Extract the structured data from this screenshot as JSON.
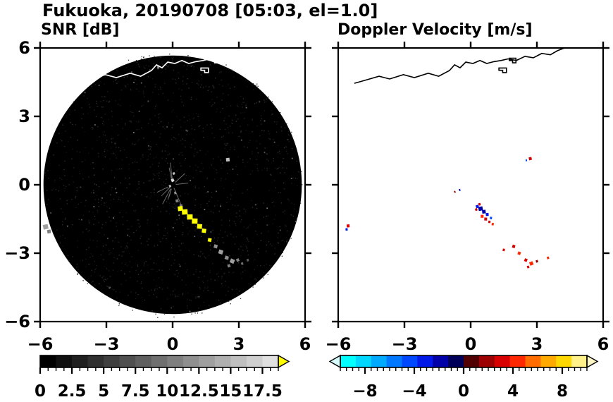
{
  "header": {
    "title": "Fukuoka, 20190708 [05:03, el=1.0]"
  },
  "panels": {
    "snr": {
      "title": "SNR [dB]"
    },
    "doppler": {
      "title": "Doppler Velocity [m/s]"
    }
  },
  "chart_data": [
    {
      "type": "heatmap",
      "variant": "radar-ppi-scan",
      "title": "SNR [dB]",
      "xlabel": "",
      "ylabel": "",
      "xlim": [
        -6,
        6
      ],
      "ylim": [
        -6,
        6
      ],
      "xtick_values": [
        -6,
        -3,
        0,
        3,
        6
      ],
      "xtick_labels": [
        "−6",
        "−3",
        "0",
        "3",
        "6"
      ],
      "ytick_values": [
        -6,
        -3,
        0,
        3,
        6
      ],
      "ytick_labels": [
        "−6",
        "−3",
        "0",
        "3",
        "6"
      ],
      "grid": false,
      "scan_disk": true,
      "scan_radius": 5.85,
      "background_color": "#000000",
      "coast_color": "#ffffff",
      "colorbar": {
        "vmin": 0,
        "vmax": 18.75,
        "minor_tick_step": 0.625,
        "tick_values": [
          0,
          2.5,
          5,
          7.5,
          10,
          12.5,
          15,
          17.5
        ],
        "tick_labels": [
          "0",
          "2.5",
          "5",
          "7.5",
          "10",
          "12.5",
          "15",
          "17.5"
        ],
        "segment_colors": [
          "#000000",
          "#101010",
          "#1f1f1f",
          "#2f2f2f",
          "#3f3f3f",
          "#4f4f4f",
          "#5f5f5f",
          "#6f6f6f",
          "#7f7f7f",
          "#8f8f8f",
          "#9f9f9f",
          "#afafaf",
          "#bfbfbf",
          "#cfcfcf",
          "#e0e0e0"
        ],
        "over_arrow_color": "#ffff00"
      },
      "echoes_format": [
        "x_km_east",
        "y_km_north",
        "value_dB",
        "size_px"
      ],
      "echoes": [
        [
          0.0,
          0.2,
          18.5,
          4
        ],
        [
          0.05,
          0.5,
          16,
          3
        ],
        [
          -0.12,
          -0.05,
          14,
          3
        ],
        [
          0.12,
          -0.35,
          12,
          3
        ],
        [
          0.2,
          -0.7,
          10,
          4
        ],
        [
          0.38,
          -0.92,
          11,
          4
        ],
        [
          0.35,
          -1.05,
          20,
          7
        ],
        [
          0.55,
          -1.2,
          20,
          8
        ],
        [
          0.78,
          -1.42,
          20,
          8
        ],
        [
          1.0,
          -1.6,
          20,
          8
        ],
        [
          1.22,
          -1.83,
          20,
          7
        ],
        [
          1.42,
          -2.02,
          20,
          6
        ],
        [
          1.68,
          -2.42,
          20,
          5
        ],
        [
          1.95,
          -2.7,
          12,
          5
        ],
        [
          2.18,
          -2.95,
          13,
          6
        ],
        [
          2.45,
          -3.2,
          12,
          5
        ],
        [
          2.7,
          -3.35,
          13,
          6
        ],
        [
          2.95,
          -3.3,
          11,
          4
        ],
        [
          2.55,
          -3.55,
          10,
          4
        ],
        [
          3.15,
          -3.45,
          9,
          3
        ],
        [
          3.4,
          -3.3,
          8,
          3
        ],
        [
          -5.75,
          -1.85,
          13,
          7
        ],
        [
          -5.6,
          -2.05,
          11,
          5
        ],
        [
          2.5,
          1.1,
          15,
          5
        ],
        [
          -0.65,
          5.15,
          12,
          3
        ]
      ]
    },
    {
      "type": "heatmap",
      "variant": "radar-ppi-scan",
      "title": "Doppler Velocity [m/s]",
      "xlabel": "",
      "ylabel": "",
      "xlim": [
        -6,
        6
      ],
      "ylim": [
        -6,
        6
      ],
      "xtick_values": [
        -6,
        -3,
        0,
        3,
        6
      ],
      "xtick_labels": [
        "−6",
        "−3",
        "0",
        "3",
        "6"
      ],
      "ytick_values": [
        -6,
        -3,
        0,
        3,
        6
      ],
      "ytick_labels": [
        "−6",
        "−3",
        "0",
        "3",
        "6"
      ],
      "grid": false,
      "scan_disk": false,
      "scan_radius": 5.85,
      "background_color": "#ffffff",
      "coast_color": "#000000",
      "colorbar": {
        "vmin": -10,
        "vmax": 10,
        "minor_tick_step": 0.5,
        "tick_values": [
          -8,
          -4,
          0,
          4,
          8
        ],
        "tick_labels": [
          "−8",
          "−4",
          "0",
          "4",
          "8"
        ],
        "segment_colors": [
          "#00ffff",
          "#00d8ff",
          "#00aaff",
          "#0078ff",
          "#0048ff",
          "#0018e8",
          "#0000a8",
          "#000058",
          "#500000",
          "#9c0000",
          "#d80000",
          "#ff2800",
          "#ff6c00",
          "#ffaa00",
          "#ffd800",
          "#fff089"
        ],
        "under_arrow_color": "#d8ffff",
        "over_arrow_color": "#fff6c8"
      },
      "echoes_format": [
        "x_km_east",
        "y_km_north",
        "velocity_ms",
        "size_px"
      ],
      "echoes": [
        [
          -0.72,
          -0.3,
          2,
          2
        ],
        [
          -0.5,
          -0.22,
          -2,
          2
        ],
        [
          0.25,
          -1.08,
          3,
          3
        ],
        [
          0.3,
          -0.95,
          -3,
          4
        ],
        [
          0.4,
          -0.85,
          3,
          3
        ],
        [
          0.45,
          -1.05,
          -2,
          6
        ],
        [
          0.6,
          -1.18,
          -2,
          5
        ],
        [
          0.75,
          -1.3,
          -3,
          4
        ],
        [
          0.52,
          -1.38,
          4,
          4
        ],
        [
          0.68,
          -1.5,
          3,
          4
        ],
        [
          0.85,
          -1.62,
          3,
          3
        ],
        [
          0.92,
          -1.45,
          -4,
          3
        ],
        [
          1.0,
          -1.72,
          4,
          3
        ],
        [
          1.5,
          -2.85,
          3,
          3
        ],
        [
          1.95,
          -2.7,
          3,
          4
        ],
        [
          2.2,
          -3.0,
          4,
          4
        ],
        [
          2.5,
          -3.3,
          3,
          4
        ],
        [
          2.75,
          -3.45,
          4,
          5
        ],
        [
          3.0,
          -3.35,
          2,
          3
        ],
        [
          2.6,
          -3.6,
          3,
          3
        ],
        [
          3.5,
          -3.2,
          4,
          3
        ],
        [
          2.7,
          1.15,
          3,
          4
        ],
        [
          2.52,
          1.08,
          -4,
          2
        ],
        [
          -5.55,
          -1.8,
          3,
          4
        ],
        [
          -5.62,
          -1.95,
          -3,
          3
        ]
      ]
    }
  ],
  "coastline": {
    "main": [
      [
        -5.27,
        4.45
      ],
      [
        -4.9,
        4.55
      ],
      [
        -4.65,
        4.62
      ],
      [
        -4.15,
        4.76
      ],
      [
        -3.67,
        4.64
      ],
      [
        -3.05,
        4.83
      ],
      [
        -2.55,
        4.7
      ],
      [
        -1.92,
        4.89
      ],
      [
        -1.45,
        4.76
      ],
      [
        -0.96,
        5.01
      ],
      [
        -0.73,
        5.26
      ],
      [
        -0.48,
        5.13
      ],
      [
        -0.22,
        5.38
      ],
      [
        0.1,
        5.32
      ],
      [
        0.42,
        5.45
      ],
      [
        0.73,
        5.32
      ],
      [
        1.05,
        5.4
      ],
      [
        1.37,
        5.45
      ],
      [
        1.69,
        5.52
      ],
      [
        2.07,
        5.45
      ],
      [
        2.46,
        5.63
      ],
      [
        2.84,
        5.57
      ],
      [
        3.22,
        5.76
      ],
      [
        3.61,
        5.7
      ],
      [
        3.93,
        5.88
      ],
      [
        4.25,
        6.0
      ]
    ],
    "islands": [
      [
        [
          1.28,
          5.12
        ],
        [
          1.62,
          5.12
        ],
        [
          1.62,
          4.92
        ],
        [
          1.45,
          4.92
        ],
        [
          1.45,
          5.02
        ],
        [
          1.28,
          5.02
        ]
      ],
      [
        [
          1.75,
          5.55
        ],
        [
          2.05,
          5.55
        ],
        [
          2.05,
          5.35
        ],
        [
          1.9,
          5.35
        ],
        [
          1.9,
          5.45
        ],
        [
          1.75,
          5.45
        ]
      ]
    ]
  }
}
